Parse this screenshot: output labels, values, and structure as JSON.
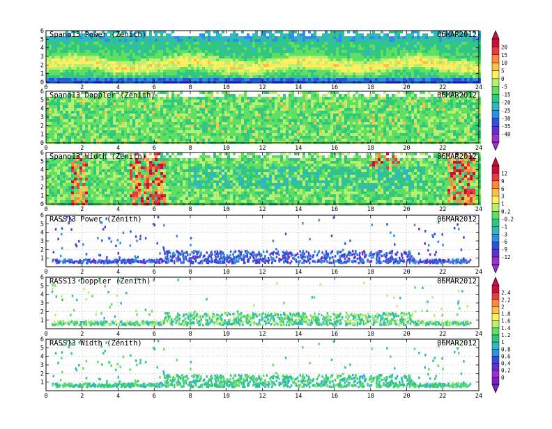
{
  "chart_data": [
    {
      "type": "heatmap",
      "title": "Spano13 Power (Zenith)",
      "date": "06MAR2012",
      "x_ticks": [
        0,
        2,
        4,
        6,
        8,
        10,
        12,
        14,
        16,
        18,
        20,
        22,
        24
      ],
      "y_ticks": [
        0,
        1,
        2,
        3,
        4,
        5,
        6
      ],
      "xlim": [
        0,
        24
      ],
      "ylim": [
        0,
        6
      ],
      "colorbar": "A",
      "show_x_ticks": true
    },
    {
      "type": "heatmap",
      "title": "Spano13 Doppler (Zenith)",
      "date": "06MAR2012",
      "x_ticks": [
        0,
        2,
        4,
        6,
        8,
        10,
        12,
        14,
        16,
        18,
        20,
        22,
        24
      ],
      "y_ticks": [
        0,
        1,
        2,
        3,
        4,
        5,
        6
      ],
      "xlim": [
        0,
        24
      ],
      "ylim": [
        0,
        6
      ],
      "colorbar": "A",
      "show_x_ticks": true
    },
    {
      "type": "heatmap",
      "title": "Spano13 Width (Zenith)",
      "date": "06MAR2012",
      "x_ticks": [
        0,
        2,
        4,
        6,
        8,
        10,
        12,
        14,
        16,
        18,
        20,
        22,
        24
      ],
      "y_ticks": [
        0,
        1,
        2,
        3,
        4,
        5,
        6
      ],
      "xlim": [
        0,
        24
      ],
      "ylim": [
        0,
        6
      ],
      "colorbar": "B",
      "show_x_ticks": true
    },
    {
      "type": "heatmap",
      "title": "RASS13 Power (Zenith)",
      "date": "06MAR2012",
      "x_ticks": [
        0,
        2,
        4,
        6,
        8,
        10,
        12,
        14,
        16,
        18,
        20,
        22,
        24
      ],
      "y_ticks": [
        1,
        2,
        3,
        4,
        5,
        6
      ],
      "xlim": [
        0,
        24
      ],
      "ylim": [
        0,
        6
      ],
      "colorbar": "B",
      "show_x_ticks": true
    },
    {
      "type": "heatmap",
      "title": "RASS13 Doppler (Zenith)",
      "date": "06MAR2012",
      "x_ticks": [
        0,
        2,
        4,
        6,
        8,
        10,
        12,
        14,
        16,
        18,
        20,
        22,
        24
      ],
      "y_ticks": [
        1,
        2,
        3,
        4,
        5,
        6
      ],
      "xlim": [
        0,
        24
      ],
      "ylim": [
        0,
        6
      ],
      "colorbar": "C",
      "show_x_ticks": true
    },
    {
      "type": "heatmap",
      "title": "RASS13 Width (Zenith)",
      "date": "06MAR2012",
      "x_ticks": [
        0,
        2,
        4,
        6,
        8,
        10,
        12,
        14,
        16,
        18,
        20,
        22,
        24
      ],
      "y_ticks": [
        1,
        2,
        3,
        4,
        5,
        6
      ],
      "xlim": [
        0,
        24
      ],
      "ylim": [
        0,
        6
      ],
      "colorbar": "C",
      "show_x_ticks": true
    }
  ],
  "colorbars": {
    "A": {
      "labels": [
        "20",
        "15",
        "10",
        "5",
        "0",
        "-5",
        "-15",
        "-20",
        "-25",
        "-30",
        "-35",
        "-40"
      ],
      "colors": [
        "#c8103a",
        "#e83c3c",
        "#ff8a3c",
        "#ffc04a",
        "#fff060",
        "#b8f070",
        "#60e060",
        "#30c880",
        "#30b8c0",
        "#3090e0",
        "#3050e0",
        "#6030d0",
        "#a030d0"
      ]
    },
    "B": {
      "labels": [
        "12",
        "9",
        "6",
        "3",
        "1",
        "0.2",
        "-0.2",
        "-1",
        "-3",
        "-6",
        "-9",
        "-12"
      ],
      "colors": [
        "#c8103a",
        "#e83c3c",
        "#ff8a3c",
        "#ffc04a",
        "#fff060",
        "#b8f070",
        "#60e060",
        "#30c880",
        "#30b8c0",
        "#3090e0",
        "#3050e0",
        "#6030d0",
        "#a030d0"
      ]
    },
    "C": {
      "labels": [
        "2.4",
        "2.2",
        "2",
        "1.8",
        "1.6",
        "1.4",
        "1.2",
        "1",
        "0.8",
        "0.6",
        "0.4",
        "0.2",
        "0"
      ],
      "colors": [
        "#c8103a",
        "#e83c3c",
        "#ff8a3c",
        "#ffc04a",
        "#fff060",
        "#b8f070",
        "#60e060",
        "#30c880",
        "#30b8c0",
        "#3090e0",
        "#3050e0",
        "#6030d0",
        "#a030d0",
        "#8020c0"
      ]
    }
  }
}
